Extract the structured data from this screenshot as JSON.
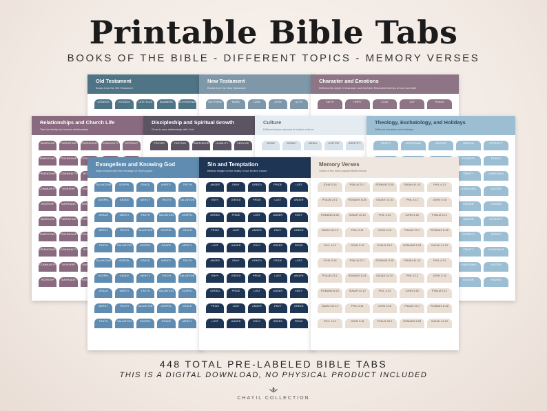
{
  "title": "Printable Bible Tabs",
  "subtitle": "BOOKS OF THE BIBLE - DIFFERENT TOPICS - MEMORY VERSES",
  "total_note": "448 TOTAL PRE-LABELED BIBLE TABS",
  "download_note": "THIS IS A DIGITAL DOWNLOAD, NO PHYSICAL PRODUCT INCLUDED",
  "brand": "CHAYIL COLLECTION",
  "sheets": {
    "old_testament": {
      "title": "Old Testament",
      "desc": "Books from the Old Testament",
      "color": "#4e7486",
      "tabs": [
        "GENESIS",
        "EXODUS",
        "LEVITICUS",
        "NUMBERS",
        "DEUTERONOMY"
      ]
    },
    "new_testament": {
      "title": "New Testament",
      "desc": "Books from the New Testament",
      "color": "#7e98aa",
      "tabs": [
        "MATTHEW",
        "MARK",
        "LUKE",
        "JOHN",
        "ACTS"
      ]
    },
    "character": {
      "title": "Character and Emotions",
      "desc": "Reflects the depth of character and the New Testament themes of love and faith",
      "color": "#8d7586",
      "tabs": [
        "FAITH",
        "HOPE",
        "LOVE",
        "JOY",
        "PEACE"
      ]
    },
    "relationships": {
      "title": "Relationships and Church Life",
      "desc": "Tabs for family and church relationships",
      "color": "#8a6a7f",
      "tabs": [
        "MARRIAGE",
        "PARENTING",
        "FRIENDSHIP",
        "COMMUNITY",
        "WORSHIP"
      ]
    },
    "discipleship": {
      "title": "Discipleship and Spiritual Growth",
      "desc": "Grow in your relationship with God",
      "color": "#5c5463",
      "tabs": [
        "PRAYER",
        "FASTING",
        "OBEDIENCE",
        "HUMILITY",
        "SERVICE"
      ]
    },
    "culture": {
      "title": "Culture",
      "desc": "Different topics relevant to today's culture",
      "color": "#e4ecf2",
      "tabs": [
        "WORK",
        "MONEY",
        "MEDIA",
        "JUSTICE",
        "IDENTITY"
      ]
    },
    "theology": {
      "title": "Theology, Eschatology, and Holidays",
      "desc": "Different doctrines and holidays",
      "color": "#9cbed3",
      "tabs": [
        "TRINITY",
        "CHRISTMAS",
        "EASTER",
        "HEAVEN",
        "ETERNITY"
      ]
    },
    "evangelism": {
      "title": "Evangelism and Knowing God",
      "desc": "Walk forward with the message of God's grace",
      "color": "#5f8cb0",
      "tabs": [
        "SALVATION",
        "GOSPEL",
        "GRACE",
        "MERCY",
        "TRUTH"
      ]
    },
    "sin": {
      "title": "Sin and Temptation",
      "desc": "Biblical insight on the reality of our broken nature",
      "color": "#1f3554",
      "tabs": [
        "ANGER",
        "ENVY",
        "GREED",
        "PRIDE",
        "LUST"
      ]
    },
    "memory": {
      "title": "Memory Verses",
      "desc": "Some of the most popular Bible verses",
      "color": "#efe7df",
      "tabs": [
        "JOHN 3:16",
        "PSALM 23:1",
        "ROMANS 8:28",
        "ISAIAH 41:10",
        "PHIL 4:13"
      ]
    }
  },
  "colors": {
    "background": "#f4ece6",
    "title": "#1b1b1b"
  }
}
